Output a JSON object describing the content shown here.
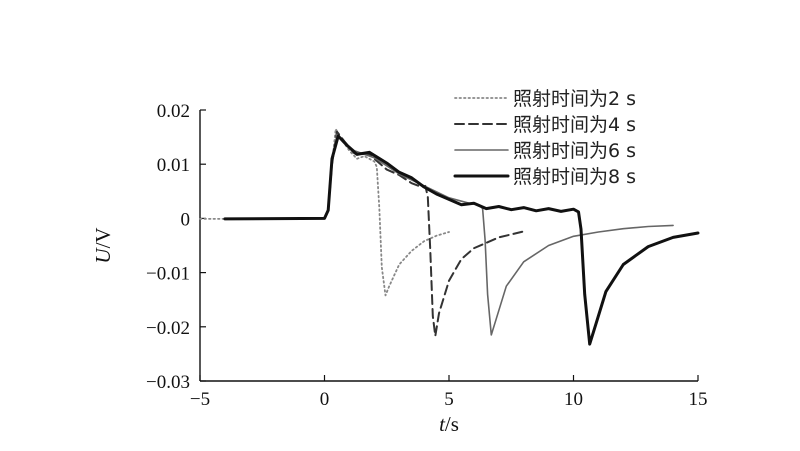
{
  "chart_data": {
    "type": "line",
    "title": "",
    "xlabel_italic": "t",
    "xlabel_unit": "/s",
    "ylabel_italic": "U",
    "ylabel_unit": "/V",
    "xlim": [
      -5,
      15
    ],
    "ylim": [
      -0.03,
      0.02
    ],
    "x_ticks": [
      -5,
      0,
      5,
      10,
      15
    ],
    "x_tick_labels": [
      "−5",
      "0",
      "5",
      "10",
      "15"
    ],
    "y_ticks": [
      -0.03,
      -0.02,
      -0.01,
      0,
      0.01,
      0.02
    ],
    "y_tick_labels": [
      "−0.03",
      "−0.02",
      "−0.01",
      "0",
      "0.01",
      "0.02"
    ],
    "grid": false,
    "legend_position": "top-right",
    "series": [
      {
        "name": "照射时间为2 s",
        "style": "dotted",
        "color": "#888888",
        "points": [
          [
            -5,
            -0.0001
          ],
          [
            -3,
            -0.0001
          ],
          [
            0,
            0
          ],
          [
            0.15,
            0.0015
          ],
          [
            0.3,
            0.01
          ],
          [
            0.45,
            0.0165
          ],
          [
            0.7,
            0.0145
          ],
          [
            1.0,
            0.0125
          ],
          [
            1.3,
            0.011
          ],
          [
            1.6,
            0.0115
          ],
          [
            2.0,
            0.0105
          ],
          [
            2.1,
            0.0095
          ],
          [
            2.2,
            0.002
          ],
          [
            2.3,
            -0.009
          ],
          [
            2.45,
            -0.0142
          ],
          [
            2.6,
            -0.0125
          ],
          [
            3.0,
            -0.0085
          ],
          [
            3.5,
            -0.006
          ],
          [
            4.0,
            -0.0042
          ],
          [
            4.5,
            -0.0032
          ],
          [
            5.0,
            -0.0025
          ]
        ]
      },
      {
        "name": "照射时间为4 s",
        "style": "dashed",
        "color": "#333333",
        "points": [
          [
            -4,
            -0.0001
          ],
          [
            0,
            0
          ],
          [
            0.15,
            0.0015
          ],
          [
            0.3,
            0.01
          ],
          [
            0.5,
            0.016
          ],
          [
            0.8,
            0.0142
          ],
          [
            1.2,
            0.012
          ],
          [
            1.8,
            0.0118
          ],
          [
            2.5,
            0.009
          ],
          [
            3.0,
            0.008
          ],
          [
            3.5,
            0.0065
          ],
          [
            3.9,
            0.0058
          ],
          [
            4.05,
            0.006
          ],
          [
            4.15,
            0.004
          ],
          [
            4.25,
            -0.006
          ],
          [
            4.35,
            -0.018
          ],
          [
            4.45,
            -0.0217
          ],
          [
            4.6,
            -0.0175
          ],
          [
            5.0,
            -0.0115
          ],
          [
            5.5,
            -0.0075
          ],
          [
            6.0,
            -0.0055
          ],
          [
            7.0,
            -0.0035
          ],
          [
            8.0,
            -0.0024
          ]
        ]
      },
      {
        "name": "照射时间为6 s",
        "style": "solid",
        "color": "#666666",
        "points": [
          [
            -4,
            -0.0001
          ],
          [
            0,
            0
          ],
          [
            0.15,
            0.0015
          ],
          [
            0.3,
            0.0105
          ],
          [
            0.5,
            0.0155
          ],
          [
            0.8,
            0.014
          ],
          [
            1.2,
            0.0125
          ],
          [
            2.0,
            0.0112
          ],
          [
            3.0,
            0.0082
          ],
          [
            4.0,
            0.006
          ],
          [
            5.0,
            0.0038
          ],
          [
            5.8,
            0.0028
          ],
          [
            6.2,
            0.0025
          ],
          [
            6.35,
            0.0018
          ],
          [
            6.45,
            -0.004
          ],
          [
            6.55,
            -0.014
          ],
          [
            6.7,
            -0.0215
          ],
          [
            6.9,
            -0.0185
          ],
          [
            7.3,
            -0.0125
          ],
          [
            8.0,
            -0.008
          ],
          [
            9.0,
            -0.005
          ],
          [
            10.0,
            -0.0033
          ],
          [
            11.0,
            -0.0025
          ],
          [
            12.0,
            -0.0019
          ],
          [
            13.0,
            -0.0015
          ],
          [
            14.0,
            -0.0013
          ]
        ]
      },
      {
        "name": "照射时间为8 s",
        "style": "solid-thick",
        "color": "#111111",
        "points": [
          [
            -4,
            -0.0001
          ],
          [
            0,
            0
          ],
          [
            0.15,
            0.0015
          ],
          [
            0.3,
            0.011
          ],
          [
            0.55,
            0.0152
          ],
          [
            0.9,
            0.0135
          ],
          [
            1.3,
            0.0118
          ],
          [
            1.8,
            0.0122
          ],
          [
            2.5,
            0.0102
          ],
          [
            3.0,
            0.0085
          ],
          [
            3.5,
            0.0075
          ],
          [
            4.0,
            0.0058
          ],
          [
            4.5,
            0.0045
          ],
          [
            5.0,
            0.0035
          ],
          [
            5.5,
            0.0025
          ],
          [
            6.0,
            0.0028
          ],
          [
            6.5,
            0.0018
          ],
          [
            7.0,
            0.0022
          ],
          [
            7.5,
            0.0016
          ],
          [
            8.0,
            0.002
          ],
          [
            8.5,
            0.0014
          ],
          [
            9.0,
            0.0018
          ],
          [
            9.5,
            0.0013
          ],
          [
            10.0,
            0.0017
          ],
          [
            10.2,
            0.0012
          ],
          [
            10.3,
            -0.002
          ],
          [
            10.45,
            -0.014
          ],
          [
            10.65,
            -0.0232
          ],
          [
            10.9,
            -0.0195
          ],
          [
            11.3,
            -0.0135
          ],
          [
            12.0,
            -0.0085
          ],
          [
            13.0,
            -0.0052
          ],
          [
            14.0,
            -0.0035
          ],
          [
            15.0,
            -0.0027
          ]
        ]
      }
    ]
  }
}
